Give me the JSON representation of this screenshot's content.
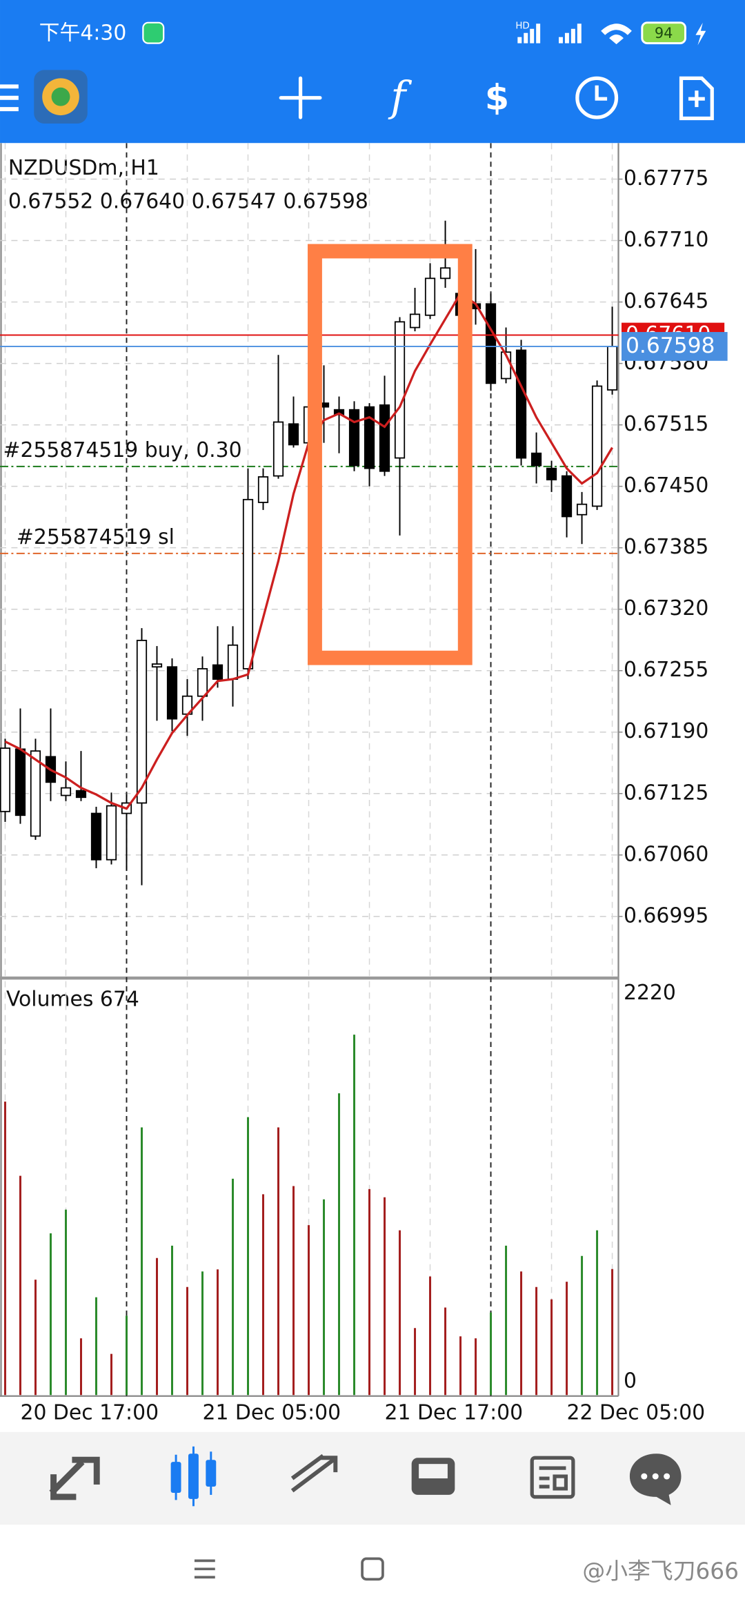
{
  "status_bar": {
    "time": "下午4:30",
    "network": "HD",
    "battery": "94"
  },
  "chart_data": [
    {
      "type": "candlestick",
      "title": "NZDUSDm, H1",
      "ohlc_labels": [
        "0.67552",
        "0.67640",
        "0.67547",
        "0.67598"
      ],
      "x": [
        null,
        "20 Dec 17:00",
        null,
        null,
        null,
        null,
        null,
        null,
        null,
        null,
        null,
        null,
        null,
        "21 Dec 05:00",
        null,
        null,
        null,
        null,
        null,
        null,
        null,
        null,
        null,
        null,
        null,
        "21 Dec 17:00",
        null,
        null,
        null,
        null,
        null,
        null,
        null,
        null,
        null,
        null,
        null,
        "22 Dec 05:00",
        null,
        null,
        null
      ],
      "open": [
        0.67106,
        0.67172,
        0.6708,
        0.67164,
        0.67123,
        0.67128,
        0.67104,
        0.67055,
        0.67104,
        0.67115,
        0.67259,
        0.67259,
        0.67209,
        0.67228,
        0.67261,
        0.67246,
        0.67257,
        0.67433,
        0.67461,
        0.67516,
        0.67496,
        0.67538,
        0.67531,
        0.67531,
        0.67534,
        0.67536,
        0.6748,
        0.67618,
        0.67631,
        0.6767,
        0.67654,
        0.67643,
        0.67643,
        0.67564,
        0.67594,
        0.67485,
        0.67469,
        0.67461,
        0.6742,
        0.67429,
        0.67552
      ],
      "high": [
        0.67183,
        0.67215,
        0.67183,
        0.67215,
        0.67159,
        0.6717,
        0.67111,
        0.67126,
        0.67124,
        0.673,
        0.67281,
        0.67268,
        0.67246,
        0.6727,
        0.67302,
        0.67302,
        0.67469,
        0.67469,
        0.67589,
        0.67545,
        0.6754,
        0.67578,
        0.67545,
        0.6754,
        0.67538,
        0.67567,
        0.67629,
        0.6766,
        0.67686,
        0.67731,
        0.6766,
        0.67701,
        0.67654,
        0.67618,
        0.67605,
        0.67507,
        0.67477,
        0.67466,
        0.67444,
        0.67562,
        0.6764
      ],
      "low": [
        0.67095,
        0.67093,
        0.67076,
        0.67117,
        0.67117,
        0.67117,
        0.67046,
        0.6705,
        0.67044,
        0.67028,
        0.67202,
        0.67191,
        0.67186,
        0.67202,
        0.67237,
        0.67217,
        0.67246,
        0.67425,
        0.67458,
        0.67491,
        0.67485,
        0.67496,
        0.67485,
        0.67466,
        0.6745,
        0.67461,
        0.67398,
        0.67614,
        0.67627,
        0.6766,
        0.67627,
        0.67621,
        0.67551,
        0.67559,
        0.67472,
        0.67453,
        0.67444,
        0.67396,
        0.67389,
        0.67425,
        0.67547
      ],
      "close": [
        0.67173,
        0.67102,
        0.6717,
        0.67137,
        0.67131,
        0.67121,
        0.67055,
        0.67112,
        0.67115,
        0.67287,
        0.67262,
        0.67204,
        0.67228,
        0.67257,
        0.67246,
        0.67282,
        0.67436,
        0.6746,
        0.67518,
        0.67494,
        0.67534,
        0.67534,
        0.67526,
        0.67472,
        0.67469,
        0.67466,
        0.67624,
        0.67632,
        0.6767,
        0.67681,
        0.67631,
        0.67638,
        0.67559,
        0.67592,
        0.6748,
        0.67472,
        0.67457,
        0.67418,
        0.67431,
        0.67556,
        0.67598
      ],
      "up_color": "#ffffff",
      "down_color": "#000000",
      "ylim": [
        0.66932,
        0.67812
      ],
      "yticks": [
        0.67775,
        {
          "value": 0.6771,
          "label": "0.67710"
        },
        0.67645,
        {
          "value": 0.6758,
          "label": "0.67580"
        },
        0.67515,
        {
          "value": 0.6745,
          "label": "0.67450"
        },
        0.67385,
        {
          "value": 0.6732,
          "label": "0.67320"
        },
        0.67255,
        {
          "value": 0.6719,
          "label": "0.67190"
        },
        0.67125,
        {
          "value": 0.6706,
          "label": "0.67060"
        },
        0.66995
      ],
      "grid": true,
      "moving_average": {
        "color": "#cc1f1f",
        "values": [
          0.6718,
          0.67172,
          0.67161,
          0.6715,
          0.67142,
          0.67131,
          0.67124,
          0.67115,
          0.67109,
          0.67131,
          0.67161,
          0.67189,
          0.67208,
          0.67226,
          0.67244,
          0.67246,
          0.67251,
          0.67311,
          0.67371,
          0.67442,
          0.67496,
          0.6752,
          0.67527,
          0.67518,
          0.67523,
          0.67513,
          0.67534,
          0.67572,
          0.676,
          0.67627,
          0.67654,
          0.67643,
          0.67616,
          0.67589,
          0.67556,
          0.67523,
          0.67496,
          0.67469,
          0.67453,
          0.67464,
          0.67491
        ]
      },
      "ask_line": {
        "value": 0.6761,
        "label": "0.67610",
        "color": "#e01010"
      },
      "bid_line": {
        "value": 0.67598,
        "color": "#4a8fe0"
      },
      "order_lines": [
        {
          "label": "#255874519 buy, 0.30",
          "value": 0.67471,
          "color": "#1a7a1a"
        },
        {
          "label": "#255874519 sl",
          "value": 0.67379,
          "color": "#e0662a"
        }
      ]
    },
    {
      "type": "bar",
      "title": "Volumes",
      "values": [
        1570,
        1173,
        617,
        865,
        992,
        303,
        523,
        220,
        424,
        1432,
        733,
        799,
        578,
        661,
        672,
        1157,
        1487,
        1074,
        1432,
        1118,
        909,
        1047,
        1614,
        1928,
        1102,
        1058,
        881,
        358,
        634,
        468,
        314,
        303,
        441,
        799,
        661,
        578,
        512,
        606,
        744,
        881,
        674
      ],
      "colors": [
        "#a31d1d",
        "#a31d1d",
        "#a31d1d",
        "#2a8a2a",
        "#2a8a2a",
        "#a31d1d",
        "#2a8a2a",
        "#a31d1d",
        "#2a8a2a",
        "#2a8a2a",
        "#a31d1d",
        "#2a8a2a",
        "#a31d1d",
        "#2a8a2a",
        "#a31d1d",
        "#2a8a2a",
        "#2a8a2a",
        "#a31d1d",
        "#a31d1d",
        "#a31d1d",
        "#a31d1d",
        "#2a8a2a",
        "#2a8a2a",
        "#2a8a2a",
        "#a31d1d",
        "#a31d1d",
        "#a31d1d",
        "#a31d1d",
        "#a31d1d",
        "#a31d1d",
        "#a31d1d",
        "#a31d1d",
        "#2a8a2a",
        "#2a8a2a",
        "#a31d1d",
        "#a31d1d",
        "#a31d1d",
        "#a31d1d",
        "#2a8a2a",
        "#2a8a2a",
        "#a31d1d"
      ],
      "ylim": [
        0,
        2220
      ],
      "yticks": [
        2220,
        0
      ]
    }
  ],
  "watermark": "@小李飞刀666"
}
